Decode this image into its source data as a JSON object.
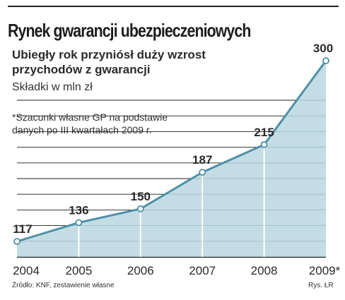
{
  "title": "Rynek gwarancji ubezpieczeniowych",
  "subtitle": "Ubiegły rok przyniósł duży wzrost\nprzychodów z gwarancji",
  "units": "Składki w mln zł",
  "note": "*Szacunki własne GP na podstawie\ndanych po III kwartałach 2009 r.",
  "footer": {
    "source": "Źródło: KNF, zestawienie własne",
    "credit": "Rys. ŁR"
  },
  "colors": {
    "area_fill": "#bad7e1",
    "line": "#4f90a8",
    "grid": "#1f1f1f",
    "text": "#2a2a2a"
  },
  "chart_data": {
    "type": "area",
    "categories": [
      "2004",
      "2005",
      "2006",
      "2007",
      "2008",
      "2009*"
    ],
    "values": [
      117,
      136,
      150,
      187,
      215,
      300
    ],
    "data_labels": [
      "117",
      "136",
      "150",
      "187",
      "215",
      "300"
    ],
    "title": "Rynek gwarancji ubezpieczeniowych",
    "ylabel": "Składki w mln zł",
    "xlabel": "",
    "ylim": [
      100,
      310
    ],
    "grid": true
  }
}
